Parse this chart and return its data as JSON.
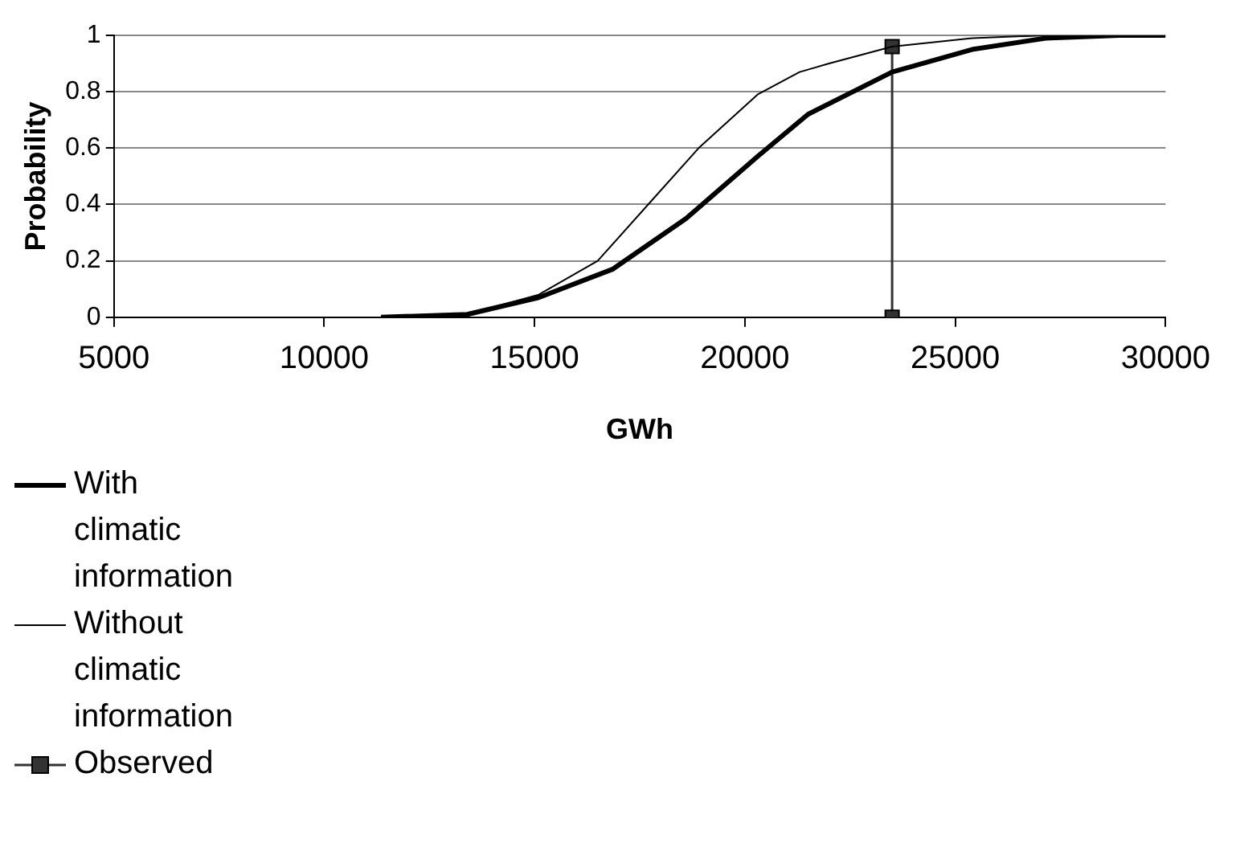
{
  "chart_data": {
    "type": "line",
    "xlabel": "GWh",
    "ylabel": "Probability",
    "xlim": [
      5000,
      30000
    ],
    "xticks": [
      5000,
      10000,
      15000,
      20000,
      25000,
      30000
    ],
    "ylim": [
      0,
      1
    ],
    "yticks": [
      0,
      0.2,
      0.4,
      0.6,
      0.8,
      1
    ],
    "grid": "y",
    "legend": "bottom",
    "series": [
      {
        "name": "With climatic information",
        "color": "#000000",
        "marker": "none",
        "x": [
          11350,
          13400,
          15100,
          16850,
          18600,
          20300,
          21500,
          23500,
          25400,
          27150,
          28900,
          30000
        ],
        "values": [
          0,
          0.01,
          0.07,
          0.17,
          0.35,
          0.57,
          0.72,
          0.87,
          0.95,
          0.99,
          1,
          1
        ]
      },
      {
        "name": "Without climatic information",
        "color": "#000000",
        "marker": "none",
        "x": [
          11350,
          13400,
          15100,
          16500,
          17700,
          18900,
          20300,
          21300,
          22000,
          23500,
          25400,
          27150,
          28900,
          30000
        ],
        "values": [
          0,
          0.01,
          0.08,
          0.2,
          0.4,
          0.6,
          0.79,
          0.87,
          0.9,
          0.96,
          0.99,
          1,
          1,
          1
        ]
      },
      {
        "name": "Observed",
        "color": "#333333",
        "marker": "square",
        "x": [
          23500,
          23500
        ],
        "values": [
          0.96,
          0
        ]
      }
    ]
  }
}
